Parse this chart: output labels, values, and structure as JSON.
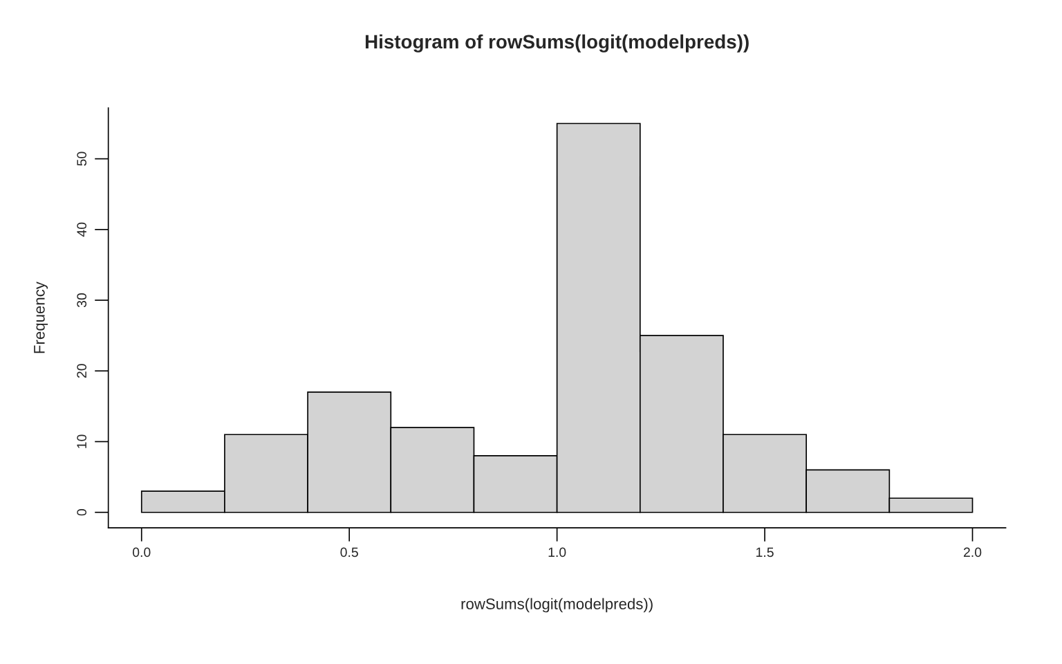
{
  "chart_data": {
    "type": "histogram",
    "title": "Histogram of rowSums(logit(modelpreds))",
    "xlabel": "rowSums(logit(modelpreds))",
    "ylabel": "Frequency",
    "bins": [
      0.0,
      0.2,
      0.4,
      0.6,
      0.8,
      1.0,
      1.2,
      1.4,
      1.6,
      1.8,
      2.0
    ],
    "values": [
      3,
      11,
      17,
      12,
      8,
      55,
      25,
      11,
      6,
      2
    ],
    "color": "#d3d3d3",
    "xlim": [
      -0.08,
      2.08
    ],
    "ylim": [
      -2.2,
      57.2
    ],
    "xticks": [
      {
        "value": 0,
        "label": "0.0"
      },
      0.5,
      {
        "value": 1,
        "label": "1.0"
      },
      1.5,
      {
        "value": 2,
        "label": "2.0"
      }
    ],
    "yticks": [
      0,
      10,
      20,
      30,
      40,
      50
    ],
    "grid": false
  }
}
